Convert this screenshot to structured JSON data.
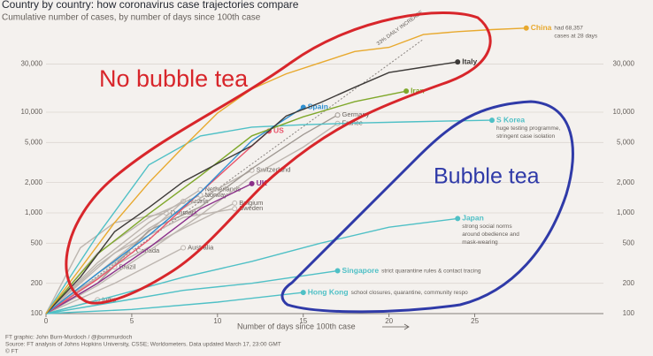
{
  "chart_data": {
    "type": "line",
    "title": "Country by country: how coronavirus case trajectories compare",
    "subtitle": "Cumulative number of cases, by number of days since 100th case",
    "x_label": "Number of days since 100th case",
    "footer": [
      "FT graphic: John Burn-Murdoch / @jburnmurdoch",
      "Source: FT analysis of Johns Hopkins University, CSSE; Worldometers. Data updated March 17, 23:00 GMT",
      "© FT"
    ],
    "annotations": [
      "No bubble tea",
      "Bubble tea"
    ],
    "log_scale": true,
    "grid": true,
    "xlim": [
      0,
      32.5
    ],
    "xticks": [
      0,
      5,
      10,
      15,
      20,
      25
    ],
    "ylim": [
      100,
      80000
    ],
    "yticks": [
      100,
      200,
      500,
      {
        "value": 1000,
        "label": "1,000"
      },
      {
        "value": 2000,
        "label": "2,000"
      },
      {
        "value": 5000,
        "label": "5,000"
      },
      {
        "value": 10000,
        "label": "10,000"
      },
      {
        "value": 30000,
        "label": "30,000"
      }
    ],
    "series": [
      {
        "name": "33% DAILY INCREASE",
        "color": "#8a8480",
        "dashed": true,
        "x": [
          0,
          22
        ],
        "values": [
          100,
          53000
        ]
      },
      {
        "name": "India",
        "color": "#bdb6b0",
        "x": [
          0,
          3
        ],
        "values": [
          100,
          137
        ]
      },
      {
        "name": "Brazil",
        "color": "#bdb6b0",
        "x": [
          0,
          2,
          4
        ],
        "values": [
          100,
          180,
          290
        ]
      },
      {
        "name": "Canada",
        "color": "#bdb6b0",
        "x": [
          0,
          3,
          5
        ],
        "values": [
          100,
          250,
          420
        ]
      },
      {
        "name": "Australia",
        "color": "#bdb6b0",
        "x": [
          0,
          4,
          8
        ],
        "values": [
          100,
          200,
          450
        ]
      },
      {
        "name": "Denmark",
        "color": "#bdb6b0",
        "x": [
          0,
          2,
          4,
          7
        ],
        "values": [
          100,
          450,
          800,
          1000
        ]
      },
      {
        "name": "Sweden",
        "color": "#bdb6b0",
        "x": [
          0,
          4,
          8,
          11
        ],
        "values": [
          100,
          400,
          900,
          1100
        ]
      },
      {
        "name": "Belgium",
        "color": "#bdb6b0",
        "x": [
          0,
          4,
          8,
          11
        ],
        "values": [
          100,
          300,
          700,
          1250
        ]
      },
      {
        "name": "Austria",
        "color": "#bdb6b0",
        "x": [
          0,
          3,
          6,
          8
        ],
        "values": [
          100,
          250,
          650,
          1300
        ]
      },
      {
        "name": "Norway",
        "color": "#bdb6b0",
        "x": [
          0,
          3,
          6,
          9
        ],
        "values": [
          100,
          400,
          900,
          1500
        ]
      },
      {
        "name": "Netherlands",
        "color": "#bdb6b0",
        "x": [
          0,
          3,
          6,
          9
        ],
        "values": [
          100,
          320,
          800,
          1700
        ]
      },
      {
        "name": "Switzerland",
        "color": "#bdb6b0",
        "x": [
          0,
          3,
          6,
          9,
          12
        ],
        "values": [
          100,
          300,
          700,
          1400,
          2650
        ]
      },
      {
        "name": "France",
        "color": "#bdb6b0",
        "x": [
          0,
          3,
          6,
          9,
          12,
          15,
          17
        ],
        "values": [
          100,
          190,
          420,
          950,
          2300,
          4500,
          7730
        ]
      },
      {
        "name": "Germany",
        "color": "#a09993",
        "x": [
          0,
          3,
          6,
          9,
          12,
          15,
          17
        ],
        "values": [
          100,
          200,
          670,
          1150,
          2750,
          6000,
          9367
        ]
      },
      {
        "name": "UK",
        "color": "#8a2f8a",
        "x": [
          0,
          3,
          6,
          9,
          12
        ],
        "values": [
          100,
          200,
          450,
          1100,
          1950
        ]
      },
      {
        "name": "US",
        "color": "#e8556b",
        "x": [
          0,
          3,
          6,
          9,
          12,
          13
        ],
        "values": [
          100,
          220,
          540,
          1600,
          4600,
          6496
        ]
      },
      {
        "name": "Hong Kong",
        "color": "#4fc0c6",
        "note": [
          "school closures, quarantine, community respo"
        ],
        "x": [
          0,
          5,
          10,
          15
        ],
        "values": [
          100,
          110,
          130,
          162
        ]
      },
      {
        "name": "Singapore",
        "color": "#4fc0c6",
        "note": [
          "strict quarantine rules & contact tracing"
        ],
        "x": [
          0,
          4,
          8,
          12,
          17
        ],
        "values": [
          100,
          130,
          170,
          200,
          266
        ]
      },
      {
        "name": "Japan",
        "color": "#4fc0c6",
        "note": [
          "strong social norms",
          "around obedience and",
          "mask-wearing"
        ],
        "x": [
          0,
          4,
          8,
          12,
          16,
          20,
          24
        ],
        "values": [
          100,
          150,
          230,
          330,
          500,
          720,
          878
        ]
      },
      {
        "name": "S Korea",
        "color": "#4fc0c6",
        "note": [
          "huge testing programme,",
          "stringent case isolation"
        ],
        "x": [
          0,
          3,
          6,
          9,
          12,
          15,
          18,
          21,
          24,
          26
        ],
        "values": [
          100,
          600,
          3000,
          5800,
          7100,
          7500,
          7800,
          8000,
          8200,
          8320
        ]
      },
      {
        "name": "Spain",
        "color": "#2e8fd0",
        "x": [
          0,
          3,
          6,
          9,
          12,
          15
        ],
        "values": [
          100,
          250,
          600,
          1600,
          5200,
          11178
        ]
      },
      {
        "name": "Iran",
        "color": "#7fa82a",
        "x": [
          0,
          3,
          6,
          9,
          12,
          15,
          18,
          21
        ],
        "values": [
          100,
          390,
          980,
          2340,
          5820,
          9000,
          12700,
          16169
        ]
      },
      {
        "name": "Italy",
        "color": "#3d3a38",
        "x": [
          0,
          2,
          4,
          6,
          8,
          10,
          12,
          14,
          16,
          18,
          20,
          22,
          24
        ],
        "values": [
          100,
          230,
          650,
          1130,
          2040,
          3090,
          4640,
          9170,
          12460,
          17660,
          24750,
          27980,
          31506
        ]
      },
      {
        "name": "China",
        "color": "#e8a92e",
        "note": [
          "had 68,357",
          "cases at 28 days"
        ],
        "x": [
          0,
          2,
          4,
          6,
          8,
          10,
          12,
          14,
          16,
          18,
          20,
          22,
          24,
          26,
          28
        ],
        "values": [
          100,
          280,
          800,
          2000,
          4500,
          9800,
          17000,
          24000,
          31000,
          40000,
          44000,
          59000,
          63000,
          66000,
          68357
        ]
      }
    ]
  }
}
